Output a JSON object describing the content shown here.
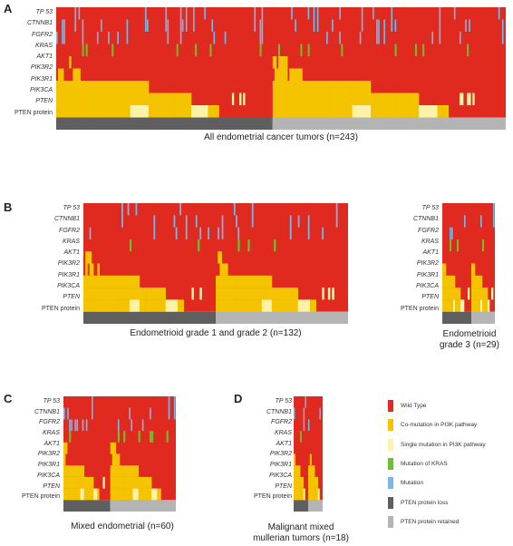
{
  "genes": [
    "TP 53",
    "CTNNB1",
    "FGFR2",
    "KRAS",
    "AKT1",
    "PIK3R2",
    "PIK3R1",
    "PIK3CA",
    "PTEN",
    "PTEN protein"
  ],
  "colors": {
    "wild_type": "#e02a20",
    "co_mutation": "#f5c400",
    "single_mutation": "#fbf3a8",
    "kras_mutation": "#6fbf2c",
    "mutation": "#7ab6e8",
    "pten_loss": "#5f5f5f",
    "pten_retained": "#b4b4b4"
  },
  "panels": [
    {
      "letter": "A",
      "caption": "All endometrial cancer tumors (n=243)"
    },
    {
      "letter": "B",
      "caption": "Endometrioid grade 1 and grade 2 (n=132)"
    },
    {
      "letter": "",
      "caption_line1": "Endometrioid",
      "caption_line2": "grade 3 (n=29)"
    },
    {
      "letter": "C",
      "caption": "Mixed endometrial (n=60)"
    },
    {
      "letter": "D",
      "caption_line1": "Malignant mixed",
      "caption_line2": "mullerian tumors (n=18)"
    }
  ],
  "legend": [
    {
      "label": "Wild Type",
      "color_key": "wild_type"
    },
    {
      "label": "Co-mutation in PI3K pathway",
      "color_key": "co_mutation"
    },
    {
      "label": "Single mutation in PI3K pathway",
      "color_key": "single_mutation"
    },
    {
      "label": "Mutation of KRAS",
      "color_key": "kras_mutation"
    },
    {
      "label": "Mutation",
      "color_key": "mutation"
    },
    {
      "label": "PTEN protein loss",
      "color_key": "pten_loss"
    },
    {
      "label": "PTEN protein retained",
      "color_key": "pten_retained"
    }
  ]
}
